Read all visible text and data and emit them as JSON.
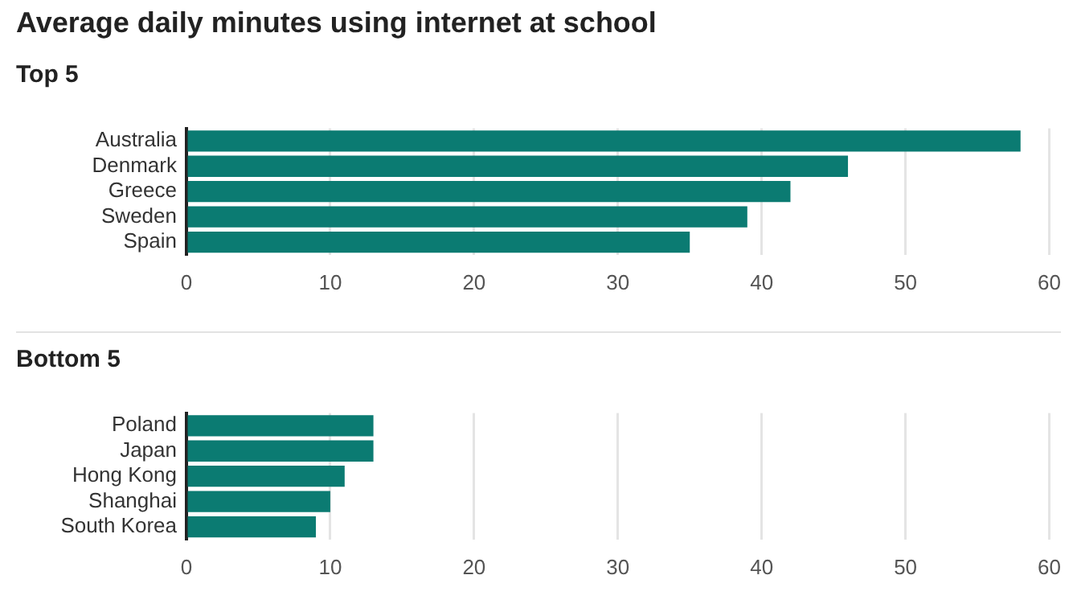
{
  "chart_data": [
    {
      "type": "bar",
      "orientation": "horizontal",
      "title": "Average daily minutes using internet at school",
      "subtitle": "Top 5",
      "categories": [
        "Australia",
        "Denmark",
        "Greece",
        "Sweden",
        "Spain"
      ],
      "values": [
        58,
        46,
        42,
        39,
        35
      ],
      "color": "#0b7b72",
      "xlim": [
        0,
        60
      ],
      "xticks": [
        0,
        10,
        20,
        30,
        40,
        50,
        60
      ],
      "grid": "x"
    },
    {
      "type": "bar",
      "orientation": "horizontal",
      "subtitle": "Bottom 5",
      "categories": [
        "Poland",
        "Japan",
        "Hong Kong",
        "Shanghai",
        "South Korea"
      ],
      "values": [
        13,
        13,
        11,
        10,
        9
      ],
      "color": "#0b7b72",
      "xlim": [
        0,
        60
      ],
      "xticks": [
        0,
        10,
        20,
        30,
        40,
        50,
        60
      ],
      "grid": "x"
    }
  ]
}
